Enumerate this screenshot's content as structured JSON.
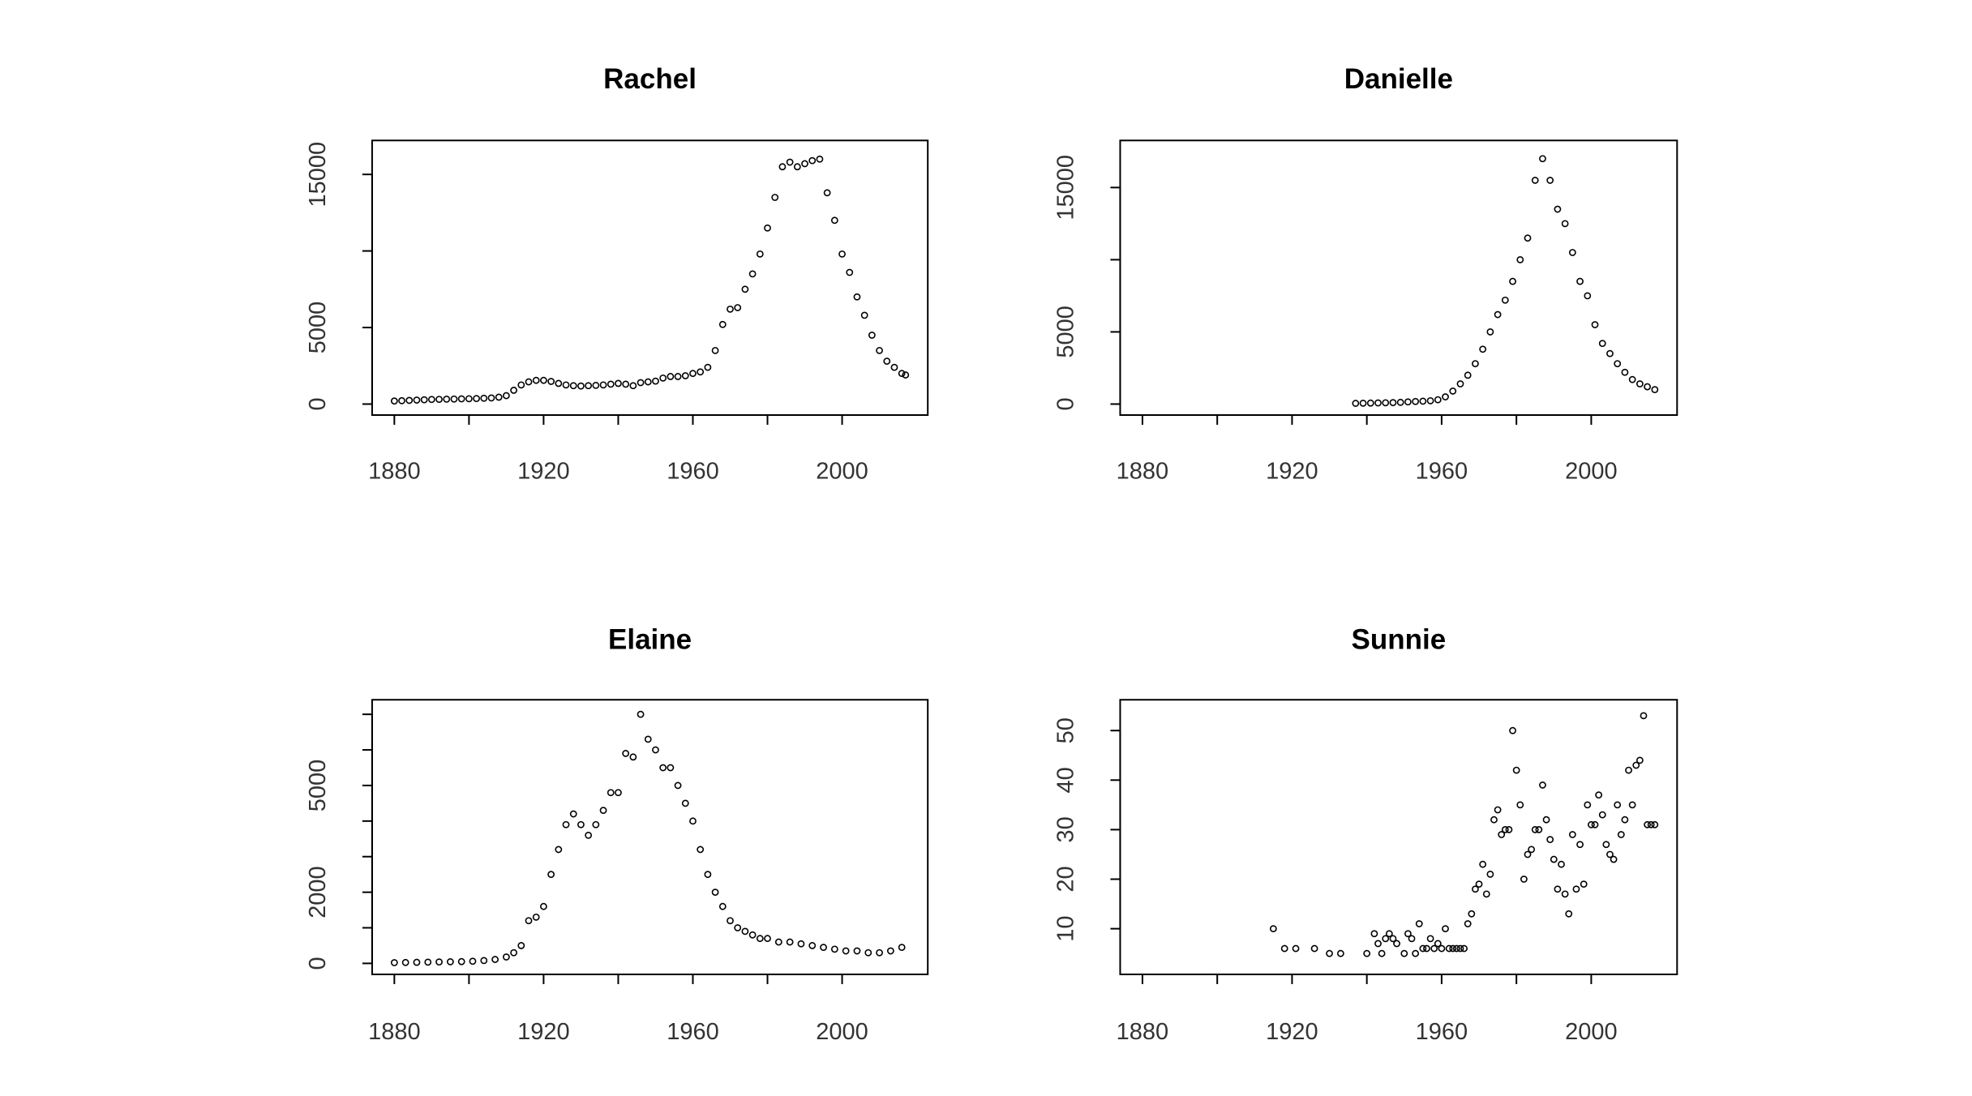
{
  "chart_data": [
    {
      "type": "scatter",
      "title": "Rachel",
      "xlabel": "",
      "ylabel": "",
      "xlim": [
        1880,
        2017
      ],
      "ylim": [
        0,
        16500
      ],
      "xticks": [
        1880,
        1900,
        1920,
        1940,
        1960,
        1980,
        2000
      ],
      "xticklabels": [
        "1880",
        "",
        "1920",
        "",
        "1960",
        "",
        "2000"
      ],
      "yticks": [
        0,
        5000,
        10000,
        15000
      ],
      "yticklabels": [
        "0",
        "5000",
        "",
        "15000"
      ],
      "grid": false,
      "x": [
        1880,
        1882,
        1884,
        1886,
        1888,
        1890,
        1892,
        1894,
        1896,
        1898,
        1900,
        1902,
        1904,
        1906,
        1908,
        1910,
        1912,
        1914,
        1916,
        1918,
        1920,
        1922,
        1924,
        1926,
        1928,
        1930,
        1932,
        1934,
        1936,
        1938,
        1940,
        1942,
        1944,
        1946,
        1948,
        1950,
        1952,
        1954,
        1956,
        1958,
        1960,
        1962,
        1964,
        1966,
        1968,
        1970,
        1972,
        1974,
        1976,
        1978,
        1980,
        1982,
        1984,
        1986,
        1988,
        1990,
        1992,
        1994,
        1996,
        1998,
        2000,
        2002,
        2004,
        2006,
        2008,
        2010,
        2012,
        2014,
        2016,
        2017
      ],
      "y": [
        200,
        220,
        240,
        260,
        280,
        300,
        310,
        320,
        330,
        340,
        350,
        360,
        380,
        400,
        450,
        550,
        900,
        1250,
        1450,
        1550,
        1550,
        1480,
        1350,
        1250,
        1200,
        1180,
        1200,
        1220,
        1250,
        1300,
        1350,
        1300,
        1200,
        1400,
        1450,
        1500,
        1700,
        1800,
        1800,
        1850,
        2000,
        2100,
        2400,
        3500,
        5200,
        6200,
        6300,
        7500,
        8500,
        9800,
        11500,
        13500,
        15500,
        15800,
        15500,
        15700,
        15900,
        16000,
        13800,
        12000,
        9800,
        8600,
        7000,
        5800,
        4500,
        3500,
        2800,
        2400,
        2000,
        1900
      ]
    },
    {
      "type": "scatter",
      "title": "Danielle",
      "xlabel": "",
      "ylabel": "",
      "xlim": [
        1880,
        2017
      ],
      "ylim": [
        0,
        17500
      ],
      "xticks": [
        1880,
        1900,
        1920,
        1940,
        1960,
        1980,
        2000
      ],
      "xticklabels": [
        "1880",
        "",
        "1920",
        "",
        "1960",
        "",
        "2000"
      ],
      "yticks": [
        0,
        5000,
        10000,
        15000
      ],
      "yticklabels": [
        "0",
        "5000",
        "",
        "15000"
      ],
      "grid": false,
      "x": [
        1937,
        1939,
        1941,
        1943,
        1945,
        1947,
        1949,
        1951,
        1953,
        1955,
        1957,
        1959,
        1961,
        1963,
        1965,
        1967,
        1969,
        1971,
        1973,
        1975,
        1977,
        1979,
        1981,
        1983,
        1985,
        1987,
        1989,
        1991,
        1993,
        1995,
        1997,
        1999,
        2001,
        2003,
        2005,
        2007,
        2009,
        2011,
        2013,
        2015,
        2017
      ],
      "y": [
        50,
        60,
        70,
        80,
        90,
        100,
        120,
        150,
        180,
        200,
        230,
        300,
        500,
        900,
        1400,
        2000,
        2800,
        3800,
        5000,
        6200,
        7200,
        8500,
        10000,
        11500,
        15500,
        17000,
        15500,
        13500,
        12500,
        10500,
        8500,
        7500,
        5500,
        4200,
        3500,
        2800,
        2200,
        1700,
        1400,
        1200,
        1000
      ]
    },
    {
      "type": "scatter",
      "title": "Elaine",
      "xlabel": "",
      "ylabel": "",
      "xlim": [
        1880,
        2017
      ],
      "ylim": [
        0,
        7100
      ],
      "xticks": [
        1880,
        1900,
        1920,
        1940,
        1960,
        1980,
        2000
      ],
      "xticklabels": [
        "1880",
        "",
        "1920",
        "",
        "1960",
        "",
        "2000"
      ],
      "yticks": [
        0,
        1000,
        2000,
        3000,
        4000,
        5000,
        6000,
        7000
      ],
      "yticklabels": [
        "0",
        "",
        "2000",
        "",
        "",
        "5000",
        "",
        ""
      ],
      "grid": false,
      "x": [
        1880,
        1883,
        1886,
        1889,
        1892,
        1895,
        1898,
        1901,
        1904,
        1907,
        1910,
        1912,
        1914,
        1916,
        1918,
        1920,
        1922,
        1924,
        1926,
        1928,
        1930,
        1932,
        1934,
        1936,
        1938,
        1940,
        1942,
        1944,
        1946,
        1948,
        1950,
        1952,
        1954,
        1956,
        1958,
        1960,
        1962,
        1964,
        1966,
        1968,
        1970,
        1972,
        1974,
        1976,
        1978,
        1980,
        1983,
        1986,
        1989,
        1992,
        1995,
        1998,
        2001,
        2004,
        2007,
        2010,
        2013,
        2016
      ],
      "y": [
        20,
        25,
        30,
        35,
        40,
        45,
        50,
        60,
        80,
        110,
        180,
        300,
        500,
        1200,
        1300,
        1600,
        2500,
        3200,
        3900,
        4200,
        3900,
        3600,
        3900,
        4300,
        4800,
        4800,
        5900,
        5800,
        7000,
        6300,
        6000,
        5500,
        5500,
        5000,
        4500,
        4000,
        3200,
        2500,
        2000,
        1600,
        1200,
        1000,
        900,
        800,
        700,
        700,
        600,
        600,
        550,
        500,
        450,
        400,
        350,
        350,
        300,
        300,
        350,
        450
      ]
    },
    {
      "type": "scatter",
      "title": "Sunnie",
      "xlabel": "",
      "ylabel": "",
      "xlim": [
        1880,
        2017
      ],
      "ylim": [
        3,
        54
      ],
      "xticks": [
        1880,
        1900,
        1920,
        1940,
        1960,
        1980,
        2000
      ],
      "xticklabels": [
        "1880",
        "",
        "1920",
        "",
        "1960",
        "",
        "2000"
      ],
      "yticks": [
        10,
        20,
        30,
        40,
        50
      ],
      "yticklabels": [
        "10",
        "20",
        "30",
        "40",
        "50"
      ],
      "grid": false,
      "x": [
        1915,
        1918,
        1921,
        1926,
        1930,
        1933,
        1940,
        1942,
        1943,
        1944,
        1945,
        1946,
        1947,
        1948,
        1950,
        1951,
        1952,
        1953,
        1954,
        1955,
        1956,
        1957,
        1958,
        1959,
        1960,
        1961,
        1962,
        1963,
        1964,
        1965,
        1966,
        1967,
        1968,
        1969,
        1970,
        1971,
        1972,
        1973,
        1974,
        1975,
        1976,
        1977,
        1978,
        1979,
        1980,
        1981,
        1982,
        1983,
        1984,
        1985,
        1986,
        1987,
        1988,
        1989,
        1990,
        1991,
        1992,
        1993,
        1994,
        1995,
        1996,
        1997,
        1998,
        1999,
        2000,
        2001,
        2002,
        2003,
        2004,
        2005,
        2006,
        2007,
        2008,
        2009,
        2010,
        2011,
        2012,
        2013,
        2014,
        2015,
        2016,
        2017
      ],
      "y": [
        10,
        6,
        6,
        6,
        5,
        5,
        5,
        9,
        7,
        5,
        8,
        9,
        8,
        7,
        5,
        9,
        8,
        5,
        11,
        6,
        6,
        8,
        6,
        7,
        6,
        10,
        6,
        6,
        6,
        6,
        6,
        11,
        13,
        18,
        19,
        23,
        17,
        21,
        32,
        34,
        29,
        30,
        30,
        50,
        42,
        35,
        20,
        25,
        26,
        30,
        30,
        39,
        32,
        28,
        24,
        18,
        23,
        17,
        13,
        29,
        18,
        27,
        19,
        35,
        31,
        31,
        37,
        33,
        27,
        25,
        24,
        35,
        29,
        32,
        42,
        35,
        43,
        44,
        53,
        31,
        31,
        31
      ]
    }
  ]
}
